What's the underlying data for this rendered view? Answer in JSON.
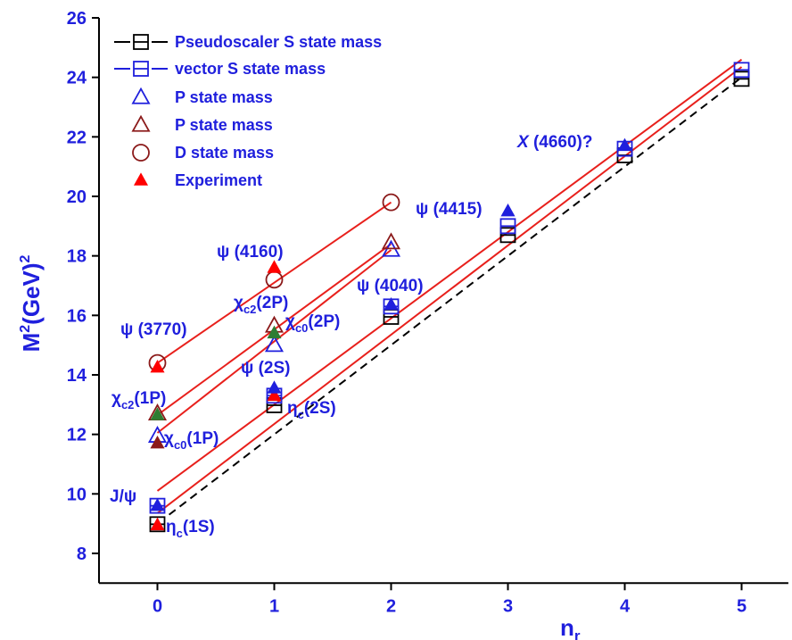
{
  "chart_data": {
    "type": "scatter",
    "x_label": {
      "main": "n",
      "sub": "r"
    },
    "y_label": {
      "main": "M",
      "sup": "2",
      "tail": "(GeV)",
      "sup2": "2"
    },
    "xlim": [
      -0.5,
      5.4
    ],
    "ylim": [
      7,
      26
    ],
    "xticks": [
      0,
      1,
      2,
      3,
      4,
      5
    ],
    "yticks": [
      8,
      10,
      12,
      14,
      16,
      18,
      20,
      22,
      24,
      26
    ],
    "legend": "upper left",
    "series": [
      {
        "name": "Pseudoscaler S state mass",
        "color": "#000000",
        "marker": "square",
        "line_style": "dashed",
        "x": [
          0,
          1,
          2,
          3,
          4,
          5
        ],
        "values": [
          8.98,
          12.98,
          15.95,
          18.7,
          21.38,
          23.95
        ]
      },
      {
        "name": "vector S state mass",
        "color": "#1f1fdd",
        "marker": "square",
        "line_style": "dashed",
        "x": [
          0,
          1,
          2,
          3,
          4,
          5
        ],
        "values": [
          9.6,
          13.3,
          16.3,
          19.0,
          21.6,
          24.25
        ]
      },
      {
        "name": "P state mass",
        "color": "#1f1fdd",
        "marker": "triangle",
        "x": [
          0,
          1,
          2
        ],
        "values": [
          11.95,
          15.0,
          18.2
        ]
      },
      {
        "name": "P state mass",
        "color": "#8b1a1a",
        "marker": "triangle",
        "x": [
          0,
          1,
          2
        ],
        "values": [
          12.7,
          15.65,
          18.45
        ]
      },
      {
        "name": "D state mass",
        "color": "#8b1a1a",
        "marker": "circle",
        "x": [
          0,
          1,
          2
        ],
        "values": [
          14.4,
          17.2,
          19.8
        ]
      },
      {
        "name": "Experiment",
        "color": "#ff0000",
        "marker": "filled-triangle",
        "x": [
          0,
          0,
          0,
          0,
          0,
          1,
          1,
          1,
          1,
          2,
          3,
          4
        ],
        "values": [
          8.95,
          9.6,
          11.7,
          12.65,
          14.25,
          13.3,
          13.55,
          15.4,
          17.6,
          16.35,
          19.5,
          21.7
        ],
        "colors": [
          "#ff0000",
          "#1f1fdd",
          "#8b1a1a",
          "#2e7d32",
          "#ff0000",
          "#ff0000",
          "#1f1fdd",
          "#2e7d32",
          "#ff0000",
          "#1f1fdd",
          "#1f1fdd",
          "#1f1fdd"
        ]
      }
    ],
    "fit_lines": [
      {
        "color": "#e8201c",
        "dash": false,
        "x": [
          0,
          2
        ],
        "values": [
          14.4,
          19.8
        ]
      },
      {
        "color": "#e8201c",
        "dash": false,
        "x": [
          0,
          2
        ],
        "values": [
          12.65,
          18.4
        ]
      },
      {
        "color": "#e8201c",
        "dash": false,
        "x": [
          0,
          2
        ],
        "values": [
          12.05,
          18.2
        ]
      },
      {
        "color": "#e8201c",
        "dash": false,
        "x": [
          0,
          5
        ],
        "values": [
          10.1,
          24.6
        ]
      },
      {
        "color": "#e8201c",
        "dash": false,
        "x": [
          0,
          5
        ],
        "values": [
          9.35,
          24.35
        ]
      },
      {
        "color": "#000000",
        "dash": true,
        "x": [
          0.1,
          5
        ],
        "values": [
          9.3,
          24.0
        ]
      }
    ],
    "annotations": [
      {
        "main": "ψ (3770)"
      },
      {
        "main": "ψ (4160)"
      },
      {
        "main": "χ",
        "sub": "c2",
        "tail": "(2P)"
      },
      {
        "main": "χ",
        "sub": "c0",
        "tail": "(2P)"
      },
      {
        "main": "ψ (4040)"
      },
      {
        "main": "ψ (4415)"
      },
      {
        "main": "X",
        "tail": " (4660)?"
      },
      {
        "main": "ψ (2S)"
      },
      {
        "main": "η",
        "sub": "c",
        "tail": "(2S)"
      },
      {
        "main": "χ",
        "sub": "c2",
        "tail": "(1P)"
      },
      {
        "main": "χ",
        "sub": "c0",
        "tail": "(1P)"
      },
      {
        "main": "J/ψ"
      },
      {
        "main": "η",
        "sub": "c",
        "tail": "(1S)"
      }
    ]
  }
}
